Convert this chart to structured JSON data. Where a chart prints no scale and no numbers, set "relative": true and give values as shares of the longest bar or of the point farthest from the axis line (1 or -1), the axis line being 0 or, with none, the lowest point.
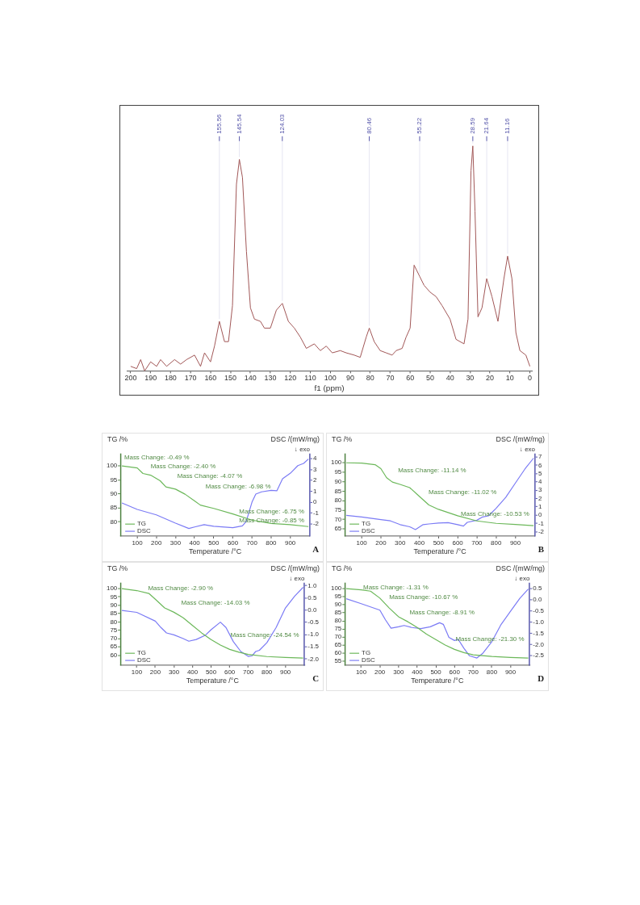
{
  "chart_data": [
    {
      "type": "line",
      "relative": true,
      "xlabel": "f1 (ppm)",
      "xlim": [
        202,
        -1
      ],
      "xticks": [
        200,
        190,
        180,
        170,
        160,
        150,
        140,
        130,
        120,
        110,
        100,
        90,
        80,
        70,
        60,
        50,
        40,
        30,
        20,
        10,
        0
      ],
      "grid": false,
      "series": [
        {
          "color": "#a05656",
          "x": [
            200,
            197,
            195,
            193,
            190,
            187,
            185,
            182,
            178,
            175,
            172,
            168,
            165,
            163,
            160,
            158,
            155.56,
            153,
            151,
            149,
            147,
            145.54,
            144,
            142,
            140,
            138,
            135,
            133,
            130,
            127,
            124.03,
            121,
            118,
            115,
            112,
            108,
            105,
            102,
            99,
            95,
            92,
            88,
            85,
            82,
            80.46,
            78,
            75,
            72,
            69,
            67,
            64,
            62,
            60,
            58,
            55.22,
            53,
            50,
            47,
            44,
            40,
            37,
            35,
            33,
            31,
            29.5,
            28.59,
            27.5,
            26,
            24,
            21.64,
            19,
            16,
            13,
            11.16,
            9,
            7,
            5,
            2,
            0
          ],
          "values": [
            0.02,
            0.01,
            0.05,
            0,
            0.04,
            0.02,
            0.05,
            0.02,
            0.05,
            0.03,
            0.05,
            0.07,
            0.02,
            0.08,
            0.04,
            0.11,
            0.22,
            0.13,
            0.13,
            0.29,
            0.83,
            0.94,
            0.86,
            0.53,
            0.28,
            0.23,
            0.22,
            0.19,
            0.19,
            0.27,
            0.3,
            0.22,
            0.19,
            0.15,
            0.1,
            0.12,
            0.09,
            0.11,
            0.08,
            0.09,
            0.08,
            0.07,
            0.06,
            0.15,
            0.19,
            0.13,
            0.09,
            0.08,
            0.07,
            0.09,
            0.1,
            0.15,
            0.19,
            0.47,
            0.42,
            0.38,
            0.35,
            0.33,
            0.29,
            0.23,
            0.14,
            0.13,
            0.12,
            0.23,
            0.89,
            1,
            0.71,
            0.24,
            0.28,
            0.41,
            0.33,
            0.22,
            0.41,
            0.51,
            0.41,
            0.17,
            0.09,
            0.07,
            0.02
          ]
        }
      ],
      "annotations": [
        {
          "text": "155.56",
          "x": 155.56,
          "y": 0.22
        },
        {
          "text": "145.54",
          "x": 145.54,
          "y": 0.94
        },
        {
          "text": "124.03",
          "x": 124.03,
          "y": 0.3
        },
        {
          "text": "80.46",
          "x": 80.46,
          "y": 0.19
        },
        {
          "text": "55.22",
          "x": 55.22,
          "y": 0.42
        },
        {
          "text": "28.59",
          "x": 28.59,
          "y": 1
        },
        {
          "text": "21.64",
          "x": 21.64,
          "y": 0.41
        },
        {
          "text": "11.16",
          "x": 11.16,
          "y": 0.51
        }
      ]
    },
    {
      "type": "line",
      "xlabel": "Temperature /°C",
      "ylabel": "TG /%",
      "y2label": "DSC /(mW/mg)",
      "xlim": [
        12,
        1003
      ],
      "xticks": [
        100,
        200,
        300,
        400,
        500,
        600,
        700,
        800,
        900
      ],
      "ylim": [
        74.9,
        104.2
      ],
      "yticks": [
        80,
        85,
        90,
        95,
        100
      ],
      "y2lim": [
        -3.1,
        4.4
      ],
      "y2ticks": [
        -2,
        -1,
        0,
        1,
        2,
        3,
        4
      ],
      "legend": "bottom left",
      "grid": false,
      "series": [
        {
          "name": "TG",
          "color": "#6cb85a",
          "x": [
            20,
            100,
            130,
            170,
            220,
            250,
            300,
            350,
            400,
            430,
            500,
            600,
            700,
            800,
            900,
            995
          ],
          "values": [
            100,
            99.3,
            97.3,
            96.7,
            94.7,
            92.5,
            91.7,
            89.9,
            87.5,
            86,
            84.8,
            82.8,
            80.6,
            79.4,
            79,
            78.3
          ]
        },
        {
          "name": "DSC",
          "color": "#7b7bf5",
          "axis": "y2",
          "x": [
            20,
            100,
            200,
            300,
            370,
            400,
            450,
            500,
            600,
            650,
            670,
            700,
            720,
            750,
            800,
            830,
            860,
            900,
            940,
            970,
            995
          ],
          "values": [
            -0.06,
            -0.66,
            -1.16,
            -1.92,
            -2.41,
            -2.27,
            -2.06,
            -2.2,
            -2.33,
            -2.16,
            -1.76,
            0,
            0.75,
            0.95,
            1.09,
            1.05,
            2.15,
            2.65,
            3.36,
            3.56,
            3.96
          ]
        }
      ],
      "annotations": [
        "Mass Change: -0.49 %",
        "Mass Change: -2.40 %",
        "Mass Change: -4.07 %",
        "Mass Change: -6.98 %",
        "Mass Change: -6.75 %",
        "Mass Change: -0.85 %",
        "↓ exo",
        "A"
      ]
    },
    {
      "type": "line",
      "xlabel": "Temperature /°C",
      "ylabel": "TG /%",
      "y2label": "DSC /(mW/mg)",
      "xlim": [
        12,
        1003
      ],
      "xticks": [
        100,
        200,
        300,
        400,
        500,
        600,
        700,
        800,
        900
      ],
      "ylim": [
        61.3,
        104.5
      ],
      "yticks": [
        65,
        70,
        75,
        80,
        85,
        90,
        95,
        100
      ],
      "y2lim": [
        -2.52,
        7.34
      ],
      "y2ticks": [
        -2,
        -1,
        0,
        1,
        2,
        3,
        4,
        5,
        6,
        7
      ],
      "legend": "bottom left",
      "grid": false,
      "series": [
        {
          "name": "TG",
          "color": "#6cb85a",
          "x": [
            20,
            100,
            170,
            200,
            230,
            260,
            300,
            350,
            400,
            450,
            500,
            600,
            700,
            800,
            900,
            995
          ],
          "values": [
            100,
            99.8,
            99,
            96.9,
            92.1,
            89.8,
            88.6,
            86.9,
            82.3,
            77.7,
            75.4,
            72,
            69.3,
            68,
            67.4,
            66.8
          ]
        },
        {
          "name": "DSC",
          "color": "#7b7bf5",
          "axis": "y2",
          "x": [
            20,
            100,
            200,
            250,
            300,
            350,
            380,
            420,
            450,
            500,
            550,
            600,
            630,
            650,
            700,
            730,
            760,
            800,
            850,
            900,
            950,
            995
          ],
          "values": [
            -0.03,
            -0.22,
            -0.53,
            -0.69,
            -1.14,
            -1.4,
            -1.74,
            -1.14,
            -1.06,
            -0.95,
            -0.9,
            -1.14,
            -1.32,
            -0.87,
            -0.61,
            -0.22,
            -0.09,
            0.83,
            2.14,
            3.85,
            5.56,
            6.87
          ]
        }
      ],
      "annotations": [
        "Mass Change: -11.14 %",
        "Mass Change: -11.02 %",
        "Mass Change: -10.53 %",
        "↓ exo",
        "B"
      ]
    },
    {
      "type": "line",
      "xlabel": "Temperature /°C",
      "ylabel": "TG /%",
      "y2label": "DSC /(mW/mg)",
      "xlim": [
        12,
        1003
      ],
      "xticks": [
        100,
        200,
        300,
        400,
        500,
        600,
        700,
        800,
        900
      ],
      "ylim": [
        54,
        103.1
      ],
      "yticks": [
        60,
        65,
        70,
        75,
        80,
        85,
        90,
        95,
        100
      ],
      "y2lim": [
        -2.25,
        1.09
      ],
      "y2ticks": [
        {
          "value": -2,
          "label": "-2.0"
        },
        {
          "value": -1.5,
          "label": "-1.5"
        },
        {
          "value": -1,
          "label": "-1.0"
        },
        {
          "value": -0.5,
          "label": "-0.5"
        },
        {
          "value": 0,
          "label": "0.0"
        },
        {
          "value": 0.5,
          "label": "0.5"
        },
        {
          "value": 1,
          "label": "1.0"
        }
      ],
      "legend": "bottom left",
      "grid": false,
      "series": [
        {
          "name": "TG",
          "color": "#6cb85a",
          "x": [
            20,
            100,
            165,
            200,
            250,
            300,
            350,
            400,
            450,
            500,
            550,
            600,
            650,
            700,
            800,
            900,
            995
          ],
          "values": [
            100,
            98.8,
            97.1,
            93.6,
            88.4,
            85.8,
            82.5,
            77.9,
            73.3,
            69.4,
            66.1,
            63.5,
            61.8,
            60.5,
            59.2,
            58.7,
            58.3
          ]
        },
        {
          "name": "DSC",
          "color": "#7b7bf5",
          "axis": "y2",
          "x": [
            20,
            100,
            200,
            230,
            260,
            300,
            350,
            380,
            420,
            470,
            500,
            550,
            580,
            620,
            660,
            700,
            720,
            740,
            760,
            800,
            850,
            900,
            950,
            995
          ],
          "values": [
            -0.01,
            -0.09,
            -0.45,
            -0.71,
            -0.93,
            -1.01,
            -1.16,
            -1.27,
            -1.2,
            -1.02,
            -0.8,
            -0.49,
            -0.71,
            -1.29,
            -1.69,
            -1.89,
            -1.87,
            -1.69,
            -1.64,
            -1.33,
            -0.71,
            0.09,
            0.57,
            0.93
          ]
        }
      ],
      "annotations": [
        "Mass Change: -2.90 %",
        "Mass Change: -14.03 %",
        "Mass Change: -24.54 %",
        "↓ exo",
        "C"
      ]
    },
    {
      "type": "line",
      "xlabel": "Temperature /°C",
      "ylabel": "TG /%",
      "y2label": "DSC /(mW/mg)",
      "xlim": [
        12,
        1003
      ],
      "xticks": [
        100,
        200,
        300,
        400,
        500,
        600,
        700,
        800,
        900
      ],
      "ylim": [
        52.6,
        103.2
      ],
      "yticks": [
        55,
        60,
        65,
        70,
        75,
        80,
        85,
        90,
        95,
        100
      ],
      "y2lim": [
        -2.92,
        0.72
      ],
      "y2ticks": [
        {
          "value": -2.5,
          "label": "-2.5"
        },
        {
          "value": -2,
          "label": "-2.0"
        },
        {
          "value": -1.5,
          "label": "-1.5"
        },
        {
          "value": -1,
          "label": "-1.0"
        },
        {
          "value": -0.5,
          "label": "-0.5"
        },
        {
          "value": 0,
          "label": "0.0"
        },
        {
          "value": 0.5,
          "label": "0.5"
        }
      ],
      "legend": "bottom left",
      "grid": false,
      "series": [
        {
          "name": "TG",
          "color": "#6cb85a",
          "x": [
            20,
            100,
            150,
            200,
            250,
            300,
            350,
            400,
            450,
            500,
            550,
            600,
            650,
            700,
            800,
            900,
            995
          ],
          "values": [
            100,
            99.2,
            98.4,
            94.1,
            88,
            82.6,
            79.5,
            75.9,
            71.8,
            68.5,
            65.1,
            62.4,
            60.4,
            59,
            58,
            57.4,
            57
          ]
        },
        {
          "name": "DSC",
          "color": "#7b7bf5",
          "axis": "y2",
          "x": [
            20,
            100,
            200,
            230,
            260,
            300,
            330,
            370,
            420,
            470,
            520,
            540,
            570,
            600,
            620,
            650,
            680,
            720,
            750,
            800,
            850,
            900,
            950,
            995
          ],
          "values": [
            0.04,
            -0.18,
            -0.47,
            -0.9,
            -1.27,
            -1.21,
            -1.15,
            -1.24,
            -1.29,
            -1.21,
            -1.03,
            -1.1,
            -1.68,
            -1.82,
            -1.77,
            -2.16,
            -2.5,
            -2.6,
            -2.4,
            -1.87,
            -1.1,
            -0.52,
            0.06,
            0.47
          ]
        }
      ],
      "annotations": [
        "Mass Change: -1.31 %",
        "Mass Change: -10.67 %",
        "Mass Change: -8.91 %",
        "Mass Change: -21.30 %",
        "↓ exo",
        "D"
      ]
    }
  ]
}
